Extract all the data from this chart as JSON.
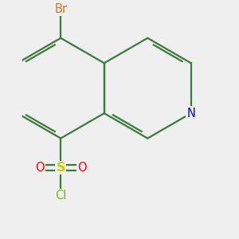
{
  "bg_color": "#efefef",
  "bond_color": "#3a7a3a",
  "bond_width": 1.6,
  "atom_colors": {
    "Br": "#c87820",
    "N": "#0000cc",
    "S": "#cccc00",
    "O": "#ff0000",
    "Cl": "#77bb00"
  },
  "font_size": 10.5,
  "fig_size": [
    3.0,
    3.0
  ],
  "dpi": 100
}
